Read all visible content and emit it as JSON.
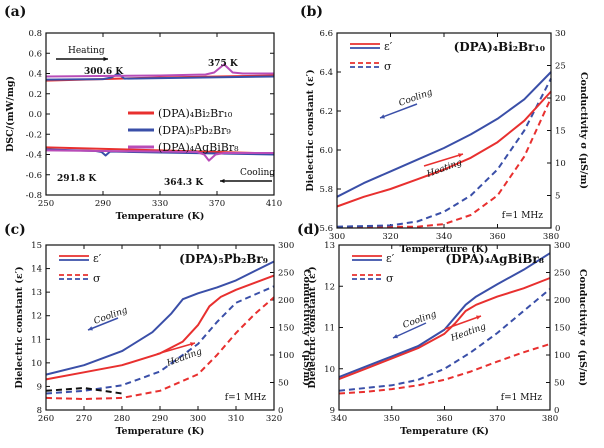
{
  "chart_data": [
    {
      "id": "a",
      "panel_label": "(a)",
      "type": "line",
      "xlabel": "Temperature (K)",
      "ylabel": "DSC/(mW/mg)",
      "xlim": [
        250,
        410
      ],
      "ylim": [
        -0.8,
        0.8
      ],
      "xticks": [
        250,
        290,
        330,
        370,
        410
      ],
      "yticks": [
        -0.8,
        -0.6,
        -0.4,
        -0.2,
        0.0,
        0.2,
        0.4,
        0.6,
        0.8
      ],
      "tick_labels_x": [
        "250",
        "290",
        "330",
        "370",
        "410"
      ],
      "tick_labels_y": [
        "-0.8",
        "-0.6",
        "-0.4",
        "-0.2",
        "0.0",
        "0.2",
        "0.4",
        "0.6",
        "0.8"
      ],
      "series": [
        {
          "name": "(DPA)₄Bi₂Br₁₀",
          "color": "#e8302f",
          "heating": {
            "x": [
              250,
              330,
              410
            ],
            "y": [
              0.33,
              0.36,
              0.38
            ]
          },
          "cooling": {
            "x": [
              250,
              330,
              410
            ],
            "y": [
              -0.33,
              -0.36,
              -0.39
            ]
          }
        },
        {
          "name": "(DPA)₅Pb₂Br₉",
          "color": "#3a4fa8",
          "heating": {
            "x": [
              250,
              290,
              296,
              300.6,
              305,
              330,
              410
            ],
            "y": [
              0.34,
              0.345,
              0.36,
              0.4,
              0.35,
              0.355,
              0.37
            ]
          },
          "cooling": {
            "x": [
              250,
              285,
              289,
              291.8,
              295,
              330,
              410
            ],
            "y": [
              -0.35,
              -0.365,
              -0.375,
              -0.41,
              -0.37,
              -0.38,
              -0.4
            ]
          }
        },
        {
          "name": "(DPA)₄AgBiBr₈",
          "color": "#b84cb8",
          "heating": {
            "x": [
              250,
              330,
              362,
              368,
              375,
              381,
              388,
              410
            ],
            "y": [
              0.37,
              0.38,
              0.39,
              0.41,
              0.49,
              0.41,
              0.4,
              0.4
            ]
          },
          "cooling": {
            "x": [
              250,
              330,
              356,
              361,
              364.3,
              369,
              375,
              410
            ],
            "y": [
              -0.36,
              -0.37,
              -0.375,
              -0.4,
              -0.46,
              -0.4,
              -0.385,
              -0.385
            ]
          }
        }
      ],
      "annotations": {
        "heating_label": "Heating",
        "cooling_label": "Cooling",
        "peaks": [
          {
            "text": "300.6 K",
            "color": "#22a06b"
          },
          {
            "text": "375 K",
            "color": "#22a06b"
          },
          {
            "text": "291.8 K",
            "color": "#22a06b"
          },
          {
            "text": "364.3 K",
            "color": "#22a06b"
          }
        ]
      }
    },
    {
      "id": "b",
      "panel_label": "(b)",
      "type": "line",
      "title": "(DPA)₄Bi₂Br₁₀",
      "xlabel": "Temperature (K)",
      "ylabel": "Dielectric constant (ε′)",
      "ylabel_right": "Conductivity σ (μS/m)",
      "xlim": [
        300,
        380
      ],
      "ylim": [
        5.6,
        6.6
      ],
      "ylim_right": [
        0,
        30
      ],
      "xticks": [
        300,
        320,
        340,
        360,
        380
      ],
      "yticks": [
        5.6,
        5.8,
        6.0,
        6.2,
        6.4,
        6.6
      ],
      "yticks_right": [
        0,
        5,
        10,
        15,
        20,
        25,
        30
      ],
      "tick_labels_x": [
        "300",
        "320",
        "340",
        "360",
        "380"
      ],
      "tick_labels_y": [
        "5.6",
        "5.8",
        "6.0",
        "6.2",
        "6.4",
        "6.6"
      ],
      "tick_labels_y_right": [
        "0",
        "5",
        "10",
        "15",
        "20",
        "25",
        "30"
      ],
      "legend": {
        "eps": "ε′",
        "sigma": "σ"
      },
      "frequency": "f=1 MHz",
      "cooling_label": "Cooling",
      "heating_label": "Heating",
      "eps_cooling": {
        "x": [
          300,
          310,
          320,
          330,
          340,
          350,
          360,
          370,
          380
        ],
        "y": [
          5.76,
          5.83,
          5.89,
          5.95,
          6.01,
          6.08,
          6.16,
          6.26,
          6.4
        ]
      },
      "eps_heating": {
        "x": [
          300,
          310,
          320,
          330,
          340,
          350,
          360,
          370,
          380
        ],
        "y": [
          5.71,
          5.76,
          5.8,
          5.85,
          5.9,
          5.96,
          6.04,
          6.15,
          6.3
        ]
      },
      "sigma_cooling": {
        "x": [
          300,
          320,
          330,
          340,
          350,
          360,
          370,
          380
        ],
        "y": [
          0.2,
          0.4,
          1.0,
          2.5,
          5,
          9,
          15,
          23
        ]
      },
      "sigma_heating": {
        "x": [
          300,
          330,
          340,
          350,
          360,
          370,
          380
        ],
        "y": [
          0.1,
          0.2,
          0.6,
          2,
          5,
          11,
          20
        ]
      }
    },
    {
      "id": "c",
      "panel_label": "(c)",
      "type": "line",
      "title": "(DPA)₅Pb₂Br₉",
      "xlabel": "Temperature (K)",
      "ylabel": "Dielectric constant (ε′)",
      "ylabel_right": "Conductivity σ (μS/m)",
      "xlim": [
        260,
        320
      ],
      "ylim": [
        8,
        15
      ],
      "ylim_right": [
        0,
        300
      ],
      "xticks": [
        260,
        270,
        280,
        290,
        300,
        310,
        320
      ],
      "yticks": [
        8,
        9,
        10,
        11,
        12,
        13,
        14,
        15
      ],
      "yticks_right": [
        0,
        50,
        100,
        150,
        200,
        250,
        300
      ],
      "tick_labels_x": [
        "260",
        "270",
        "280",
        "290",
        "300",
        "310",
        "320"
      ],
      "tick_labels_y": [
        "8",
        "9",
        "10",
        "11",
        "12",
        "13",
        "14",
        "15"
      ],
      "tick_labels_y_right": [
        "0",
        "50",
        "100",
        "150",
        "200",
        "250",
        "300"
      ],
      "legend": {
        "eps": "ε′",
        "sigma": "σ"
      },
      "frequency": "f=1 MHz",
      "cooling_label": "Cooling",
      "heating_label": "Heating",
      "eps_cooling": {
        "x": [
          260,
          270,
          280,
          288,
          293,
          296,
          300,
          305,
          310,
          315,
          320
        ],
        "y": [
          9.5,
          9.9,
          10.5,
          11.3,
          12.1,
          12.7,
          12.95,
          13.2,
          13.5,
          13.9,
          14.3
        ]
      },
      "eps_heating": {
        "x": [
          260,
          270,
          280,
          290,
          296,
          300,
          303,
          306,
          310,
          315,
          320
        ],
        "y": [
          9.3,
          9.6,
          9.9,
          10.4,
          10.9,
          11.6,
          12.4,
          12.8,
          13.1,
          13.4,
          13.7
        ]
      },
      "sigma_cooling": {
        "x": [
          260,
          270,
          280,
          290,
          300,
          305,
          310,
          315,
          320
        ],
        "y": [
          30,
          35,
          45,
          70,
          120,
          160,
          195,
          210,
          225
        ]
      },
      "sigma_heating": {
        "x": [
          260,
          270,
          280,
          290,
          300,
          305,
          310,
          315,
          320
        ],
        "y": [
          22,
          20,
          22,
          35,
          65,
          100,
          140,
          175,
          205
        ]
      },
      "sigma_reference": {
        "x": [
          260,
          270,
          280
        ],
        "y": [
          35,
          40,
          30
        ]
      }
    },
    {
      "id": "d",
      "panel_label": "(d)",
      "type": "line",
      "title": "(DPA)₄AgBiBr₈",
      "xlabel": "Temperature (K)",
      "ylabel": "Dielectric constant (ε′)",
      "ylabel_right": "Conductivity σ (μS/m)",
      "xlim": [
        340,
        380
      ],
      "ylim": [
        9,
        13
      ],
      "ylim_right": [
        0,
        300
      ],
      "xticks": [
        340,
        350,
        360,
        370,
        380
      ],
      "yticks": [
        9,
        10,
        11,
        12,
        13
      ],
      "yticks_right": [
        0,
        50,
        100,
        150,
        200,
        250,
        300
      ],
      "tick_labels_x": [
        "340",
        "350",
        "360",
        "370",
        "380"
      ],
      "tick_labels_y": [
        "9",
        "10",
        "11",
        "12",
        "13"
      ],
      "tick_labels_y_right": [
        "0",
        "50",
        "100",
        "150",
        "200",
        "250",
        "300"
      ],
      "legend": {
        "eps": "ε′",
        "sigma": "σ"
      },
      "frequency": "f=1 MHz",
      "cooling_label": "Cooling",
      "heating_label": "Heating",
      "eps_cooling": {
        "x": [
          340,
          345,
          350,
          355,
          360,
          362,
          364,
          366,
          370,
          375,
          380
        ],
        "y": [
          9.8,
          10.05,
          10.3,
          10.55,
          10.95,
          11.25,
          11.55,
          11.75,
          12.05,
          12.4,
          12.8
        ]
      },
      "eps_heating": {
        "x": [
          340,
          345,
          350,
          355,
          360,
          362,
          364,
          366,
          370,
          375,
          380
        ],
        "y": [
          9.75,
          10.0,
          10.25,
          10.5,
          10.85,
          11.1,
          11.4,
          11.55,
          11.75,
          11.95,
          12.2
        ]
      },
      "sigma_cooling": {
        "x": [
          340,
          345,
          350,
          355,
          360,
          365,
          370,
          375,
          380
        ],
        "y": [
          35,
          40,
          45,
          55,
          75,
          105,
          140,
          180,
          220
        ]
      },
      "sigma_heating": {
        "x": [
          340,
          345,
          350,
          355,
          360,
          365,
          370,
          375,
          380
        ],
        "y": [
          30,
          33,
          38,
          45,
          55,
          70,
          88,
          105,
          120
        ]
      }
    }
  ],
  "colors": {
    "red": "#e8302f",
    "blue": "#3a4fa8",
    "magenta": "#b84cb8",
    "green": "#22a06b"
  }
}
